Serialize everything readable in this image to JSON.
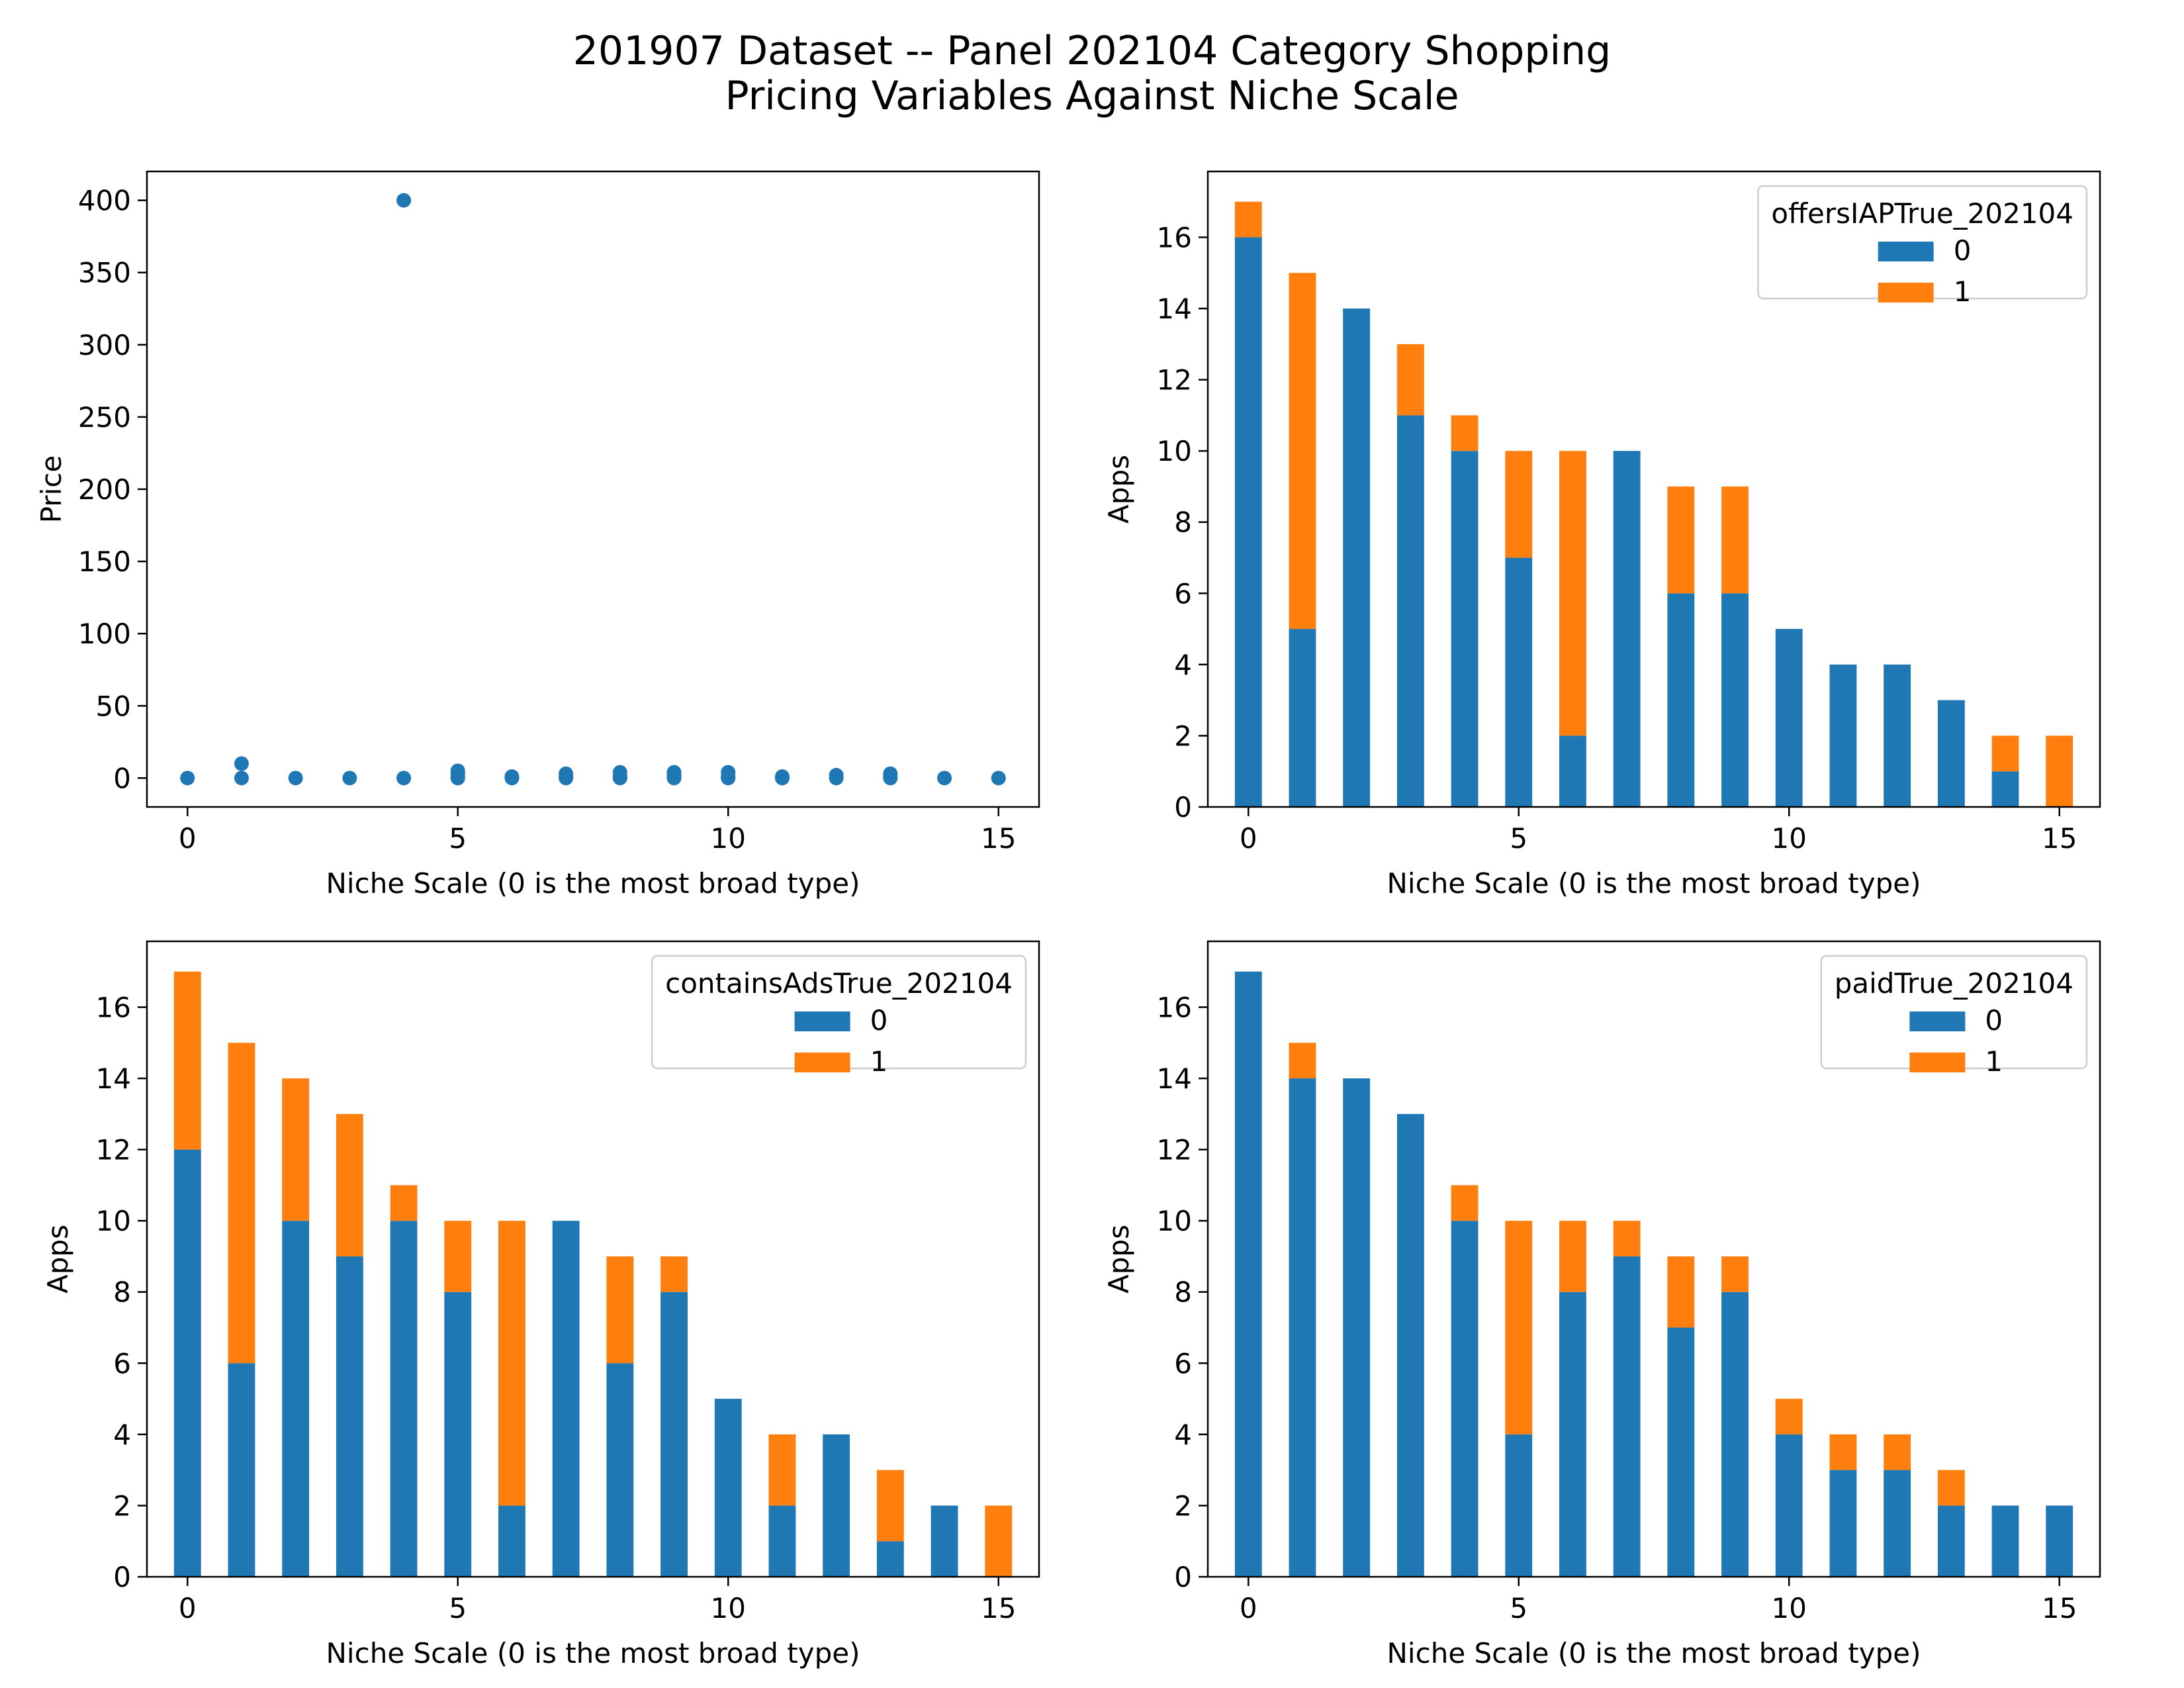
{
  "figure": {
    "title_line1": "201907 Dataset -- Panel 202104 Category Shopping",
    "title_line2": "Pricing Variables Against Niche Scale"
  },
  "colors": {
    "blue": "#1f77b4",
    "orange": "#ff7f0e"
  },
  "chart_data": [
    {
      "type": "scatter",
      "xlabel": "Niche Scale (0 is the most broad type)",
      "ylabel": "Price",
      "xlim": [
        -0.75,
        15.75
      ],
      "ylim": [
        -20,
        420
      ],
      "xticks": [
        0,
        5,
        10,
        15
      ],
      "yticks": [
        0,
        50,
        100,
        150,
        200,
        250,
        300,
        350,
        400
      ],
      "grid": false,
      "points": [
        [
          0,
          0
        ],
        [
          1,
          0
        ],
        [
          1,
          10
        ],
        [
          2,
          0
        ],
        [
          3,
          0
        ],
        [
          4,
          0
        ],
        [
          4,
          400
        ],
        [
          5,
          0
        ],
        [
          5,
          1
        ],
        [
          5,
          3
        ],
        [
          5,
          5
        ],
        [
          6,
          0
        ],
        [
          6,
          1
        ],
        [
          7,
          0
        ],
        [
          7,
          1
        ],
        [
          7,
          3
        ],
        [
          8,
          0
        ],
        [
          8,
          1
        ],
        [
          8,
          4
        ],
        [
          9,
          0
        ],
        [
          9,
          1
        ],
        [
          9,
          3
        ],
        [
          9,
          4
        ],
        [
          10,
          0
        ],
        [
          10,
          1
        ],
        [
          10,
          4
        ],
        [
          11,
          0
        ],
        [
          11,
          1
        ],
        [
          12,
          0
        ],
        [
          12,
          2
        ],
        [
          13,
          0
        ],
        [
          13,
          1
        ],
        [
          13,
          3
        ],
        [
          14,
          0
        ],
        [
          15,
          0
        ]
      ]
    },
    {
      "type": "bar",
      "stacked": true,
      "xlabel": "Niche Scale (0 is the most broad type)",
      "ylabel": "Apps",
      "xlim": [
        -0.75,
        15.75
      ],
      "ylim": [
        0,
        17.85
      ],
      "xticks": [
        0,
        5,
        10,
        15
      ],
      "yticks": [
        0,
        2,
        4,
        6,
        8,
        10,
        12,
        14,
        16
      ],
      "legend": {
        "title": "offersIAPTrue_202104",
        "placement": "top-right"
      },
      "categories": [
        0,
        1,
        2,
        3,
        4,
        5,
        6,
        7,
        8,
        9,
        10,
        11,
        12,
        13,
        14,
        15
      ],
      "series": [
        {
          "name": "0",
          "values": [
            16,
            5,
            14,
            11,
            10,
            7,
            2,
            10,
            6,
            6,
            5,
            4,
            4,
            3,
            1,
            0
          ]
        },
        {
          "name": "1",
          "values": [
            1,
            10,
            0,
            2,
            1,
            3,
            8,
            0,
            3,
            3,
            0,
            0,
            0,
            0,
            1,
            2
          ]
        }
      ]
    },
    {
      "type": "bar",
      "stacked": true,
      "xlabel": "Niche Scale (0 is the most broad type)",
      "ylabel": "Apps",
      "xlim": [
        -0.75,
        15.75
      ],
      "ylim": [
        0,
        17.85
      ],
      "xticks": [
        0,
        5,
        10,
        15
      ],
      "yticks": [
        0,
        2,
        4,
        6,
        8,
        10,
        12,
        14,
        16
      ],
      "legend": {
        "title": "containsAdsTrue_202104",
        "placement": "top-right"
      },
      "categories": [
        0,
        1,
        2,
        3,
        4,
        5,
        6,
        7,
        8,
        9,
        10,
        11,
        12,
        13,
        14,
        15
      ],
      "series": [
        {
          "name": "0",
          "values": [
            12,
            6,
            10,
            9,
            10,
            8,
            2,
            10,
            6,
            8,
            5,
            2,
            4,
            1,
            2,
            0
          ]
        },
        {
          "name": "1",
          "values": [
            5,
            9,
            4,
            4,
            1,
            2,
            8,
            0,
            3,
            1,
            0,
            2,
            0,
            2,
            0,
            2
          ]
        }
      ]
    },
    {
      "type": "bar",
      "stacked": true,
      "xlabel": "Niche Scale (0 is the most broad type)",
      "ylabel": "Apps",
      "xlim": [
        -0.75,
        15.75
      ],
      "ylim": [
        0,
        17.85
      ],
      "xticks": [
        0,
        5,
        10,
        15
      ],
      "yticks": [
        0,
        2,
        4,
        6,
        8,
        10,
        12,
        14,
        16
      ],
      "legend": {
        "title": "paidTrue_202104",
        "placement": "top-right"
      },
      "categories": [
        0,
        1,
        2,
        3,
        4,
        5,
        6,
        7,
        8,
        9,
        10,
        11,
        12,
        13,
        14,
        15
      ],
      "series": [
        {
          "name": "0",
          "values": [
            17,
            14,
            14,
            13,
            10,
            4,
            8,
            9,
            7,
            8,
            4,
            3,
            3,
            2,
            2,
            2
          ]
        },
        {
          "name": "1",
          "values": [
            0,
            1,
            0,
            0,
            1,
            6,
            2,
            1,
            2,
            1,
            1,
            1,
            1,
            1,
            0,
            0
          ]
        }
      ]
    }
  ]
}
